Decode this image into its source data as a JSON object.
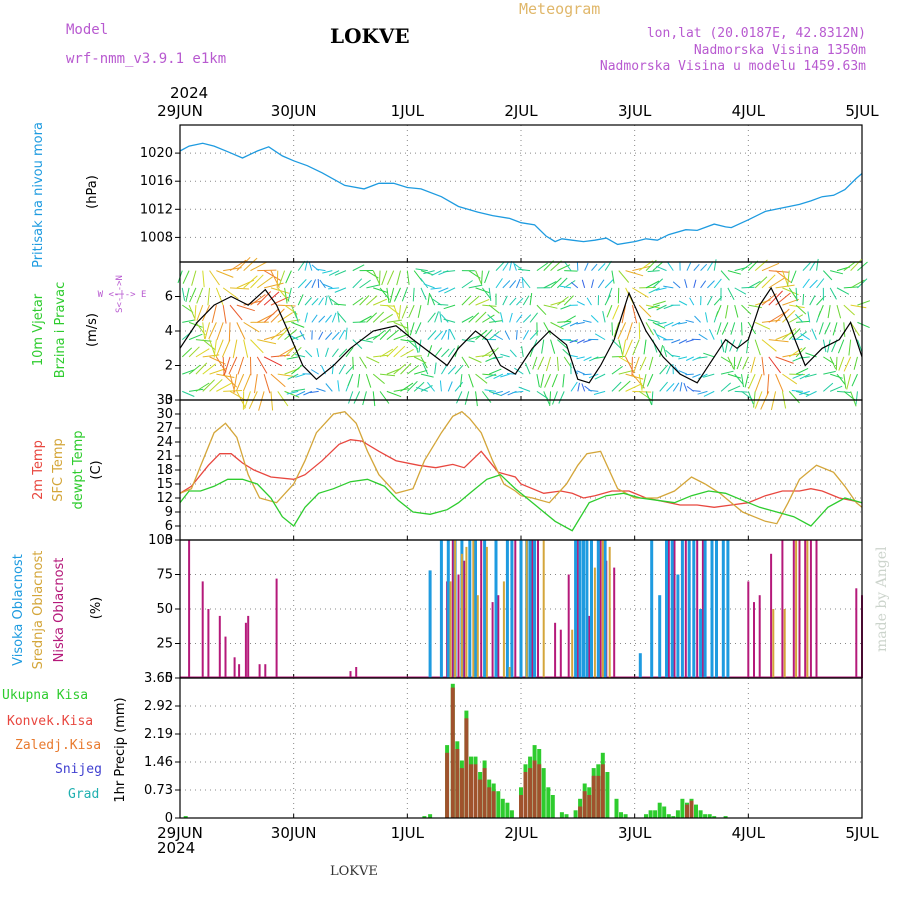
{
  "header": {
    "model_label": "Model",
    "model_name": "wrf-nmm_v3.9.1 e1km",
    "station": "LOKVE",
    "meteogram": "Meteogram",
    "coords": "lon,lat (20.0187E, 42.8312N)",
    "altitude": "Nadmorska Visina 1350m",
    "model_altitude": "Nadmorska Visina u modelu 1459.63m",
    "year": "2024",
    "footer_station": "LOKVE",
    "credit": "made by Angel"
  },
  "colors": {
    "pressure": "#1e9be0",
    "t2m": "#e8473f",
    "sfc": "#d4a63a",
    "dew": "#2ecc2e",
    "high_cloud": "#1e9be0",
    "mid_cloud": "#d4a63a",
    "low_cloud": "#b5197a",
    "total_precip": "#2ecc2e",
    "conv_precip": "#e8473f",
    "frozen_precip": "#e87a2e",
    "snow": "#4040d0",
    "hail": "#20b0b0"
  },
  "x_axis": {
    "tick_labels": [
      "29JUN",
      "30JUN",
      "1JUL",
      "2JUL",
      "3JUL",
      "4JUL",
      "5JUL"
    ]
  },
  "panels": {
    "pressure": {
      "title": "Pritisak na nivou mora",
      "unit": "(hPa)"
    },
    "wind": {
      "title1": "10m Vjetar",
      "title2": "Brzina i Pravac",
      "unit": "(m/s)",
      "compass": "W <-|-> E",
      "compass_ns": "S<-|->N"
    },
    "temp": {
      "label_t2m": "2m Temp",
      "label_sfc": "SFC Temp",
      "label_dew": "dewpt Temp",
      "unit": "(C)"
    },
    "cloud": {
      "label_high": "Visoka Oblacnost",
      "label_mid": "Srednja Oblacnost",
      "label_low": "Niska Oblacnost",
      "unit": "(%)"
    },
    "precip": {
      "label_total": "Ukupna Kisa",
      "label_conv": "Konvek.Kisa",
      "label_frozen": "Zaledj.Kisa",
      "label_snow": "Snijeg",
      "label_hail": "Grad",
      "unit": "1hr Precip (mm)"
    }
  },
  "chart_data": [
    {
      "type": "line",
      "name": "pressure",
      "ylabel": "(hPa)",
      "ylim": [
        1004.5,
        1024
      ],
      "yticks": [
        1008,
        1012,
        1016,
        1020
      ],
      "xlim_days": [
        0,
        6
      ],
      "series": [
        {
          "name": "Pritisak na nivou mora",
          "x": [
            0,
            0.08,
            0.2,
            0.3,
            0.42,
            0.55,
            0.68,
            0.78,
            0.9,
            1.0,
            1.12,
            1.25,
            1.45,
            1.62,
            1.75,
            1.88,
            2.0,
            2.12,
            2.3,
            2.45,
            2.62,
            2.75,
            2.9,
            3.0,
            3.12,
            3.22,
            3.3,
            3.36,
            3.45,
            3.55,
            3.65,
            3.75,
            3.85,
            4.0,
            4.1,
            4.2,
            4.3,
            4.45,
            4.55,
            4.7,
            4.8,
            4.85,
            5.0,
            5.15,
            5.3,
            5.45,
            5.55,
            5.65,
            5.75,
            5.85,
            5.95,
            6.0
          ],
          "values": [
            1020.3,
            1021.0,
            1021.4,
            1021.0,
            1020.2,
            1019.3,
            1020.3,
            1020.9,
            1019.6,
            1018.9,
            1018.2,
            1017.2,
            1015.4,
            1014.9,
            1015.7,
            1015.7,
            1015.1,
            1014.9,
            1013.8,
            1012.4,
            1011.6,
            1011.1,
            1010.7,
            1010.1,
            1009.8,
            1008.2,
            1007.4,
            1007.8,
            1007.6,
            1007.4,
            1007.6,
            1007.9,
            1007.0,
            1007.4,
            1007.8,
            1007.6,
            1008.4,
            1009.1,
            1009.0,
            1009.9,
            1009.5,
            1009.4,
            1010.5,
            1011.7,
            1012.2,
            1012.7,
            1013.2,
            1013.8,
            1014.0,
            1014.8,
            1016.4,
            1017.1
          ]
        }
      ]
    },
    {
      "type": "line",
      "name": "wind",
      "ylabel": "(m/s)",
      "ylim": [
        0,
        8
      ],
      "yticks": [
        0,
        2,
        4,
        6
      ],
      "xlim_days": [
        0,
        6
      ],
      "series": [
        {
          "name": "10m Vjetar Brzina",
          "x": [
            0,
            0.15,
            0.3,
            0.45,
            0.6,
            0.75,
            0.85,
            0.95,
            1.08,
            1.2,
            1.35,
            1.5,
            1.7,
            1.9,
            2.05,
            2.25,
            2.35,
            2.45,
            2.6,
            2.7,
            2.82,
            2.95,
            3.1,
            3.25,
            3.4,
            3.5,
            3.6,
            3.7,
            3.82,
            3.95,
            4.1,
            4.25,
            4.4,
            4.55,
            4.7,
            4.8,
            4.9,
            5.0,
            5.1,
            5.2,
            5.35,
            5.5,
            5.65,
            5.8,
            5.9,
            6.0
          ],
          "values": [
            3.0,
            4.5,
            5.5,
            6.0,
            5.5,
            6.4,
            5.5,
            4.0,
            2.0,
            1.2,
            2.0,
            3.0,
            4.0,
            4.3,
            3.5,
            2.5,
            2.0,
            3.0,
            4.0,
            3.5,
            2.0,
            1.5,
            3.0,
            4.0,
            3.2,
            1.2,
            1.0,
            2.0,
            3.5,
            6.2,
            4.0,
            2.5,
            1.5,
            1.0,
            2.5,
            3.5,
            3.0,
            3.5,
            5.5,
            6.5,
            4.5,
            2.0,
            3.0,
            3.5,
            4.5,
            2.5
          ]
        }
      ]
    },
    {
      "type": "line",
      "name": "temperature",
      "ylabel": "(C)",
      "ylim": [
        3,
        33
      ],
      "yticks": [
        3,
        6,
        9,
        12,
        15,
        18,
        21,
        24,
        27,
        30,
        33
      ],
      "xlim_days": [
        0,
        6
      ],
      "series": [
        {
          "name": "2m Temp",
          "x": [
            0,
            0.1,
            0.25,
            0.35,
            0.45,
            0.55,
            0.65,
            0.8,
            1.0,
            1.1,
            1.25,
            1.4,
            1.5,
            1.6,
            1.75,
            1.9,
            2.1,
            2.25,
            2.4,
            2.5,
            2.65,
            2.8,
            2.95,
            3.0,
            3.1,
            3.2,
            3.35,
            3.45,
            3.55,
            3.65,
            3.8,
            3.95,
            4.1,
            4.2,
            4.4,
            4.55,
            4.7,
            4.85,
            5.0,
            5.15,
            5.3,
            5.45,
            5.55,
            5.65,
            5.8,
            5.9,
            6.0
          ],
          "values": [
            13,
            14.5,
            19,
            21.5,
            21.5,
            19.5,
            18,
            16.5,
            16,
            17,
            20,
            23.5,
            24.5,
            24.2,
            22,
            20,
            19,
            18.5,
            19.2,
            18.5,
            22,
            17.5,
            16.5,
            15,
            14,
            13,
            13.5,
            13,
            12,
            12.5,
            13.5,
            13.5,
            12,
            11.5,
            10.5,
            10.5,
            10,
            10.5,
            11,
            12.5,
            13.5,
            13.5,
            14,
            13.5,
            12,
            11.5,
            11
          ]
        },
        {
          "name": "SFC Temp",
          "x": [
            0,
            0.1,
            0.2,
            0.3,
            0.4,
            0.5,
            0.6,
            0.7,
            0.85,
            1.0,
            1.1,
            1.2,
            1.35,
            1.45,
            1.55,
            1.65,
            1.75,
            1.9,
            2.05,
            2.15,
            2.3,
            2.4,
            2.48,
            2.55,
            2.65,
            2.75,
            2.85,
            2.95,
            3.0,
            3.1,
            3.25,
            3.4,
            3.5,
            3.58,
            3.7,
            3.85,
            4.0,
            4.2,
            4.35,
            4.5,
            4.62,
            4.75,
            4.85,
            4.95,
            5.05,
            5.15,
            5.25,
            5.35,
            5.45,
            5.6,
            5.75,
            5.85,
            5.95,
            6.0
          ],
          "values": [
            13,
            14,
            20,
            26,
            28,
            25,
            17,
            12,
            11,
            15,
            20,
            26,
            30,
            30.5,
            28,
            22,
            17,
            13,
            14,
            20,
            26,
            29.5,
            30.5,
            29,
            26,
            20,
            15,
            13.5,
            12.5,
            12,
            11,
            15,
            19,
            21.5,
            22,
            14,
            12,
            12,
            13.5,
            16.5,
            15,
            13,
            11,
            9,
            8,
            7,
            6.5,
            11,
            16,
            19,
            17.5,
            14.5,
            11,
            10
          ]
        },
        {
          "name": "dewpt Temp",
          "x": [
            0,
            0.08,
            0.18,
            0.3,
            0.42,
            0.55,
            0.68,
            0.8,
            0.9,
            1.0,
            1.1,
            1.22,
            1.35,
            1.5,
            1.65,
            1.8,
            1.92,
            2.05,
            2.2,
            2.35,
            2.45,
            2.55,
            2.7,
            2.82,
            2.95,
            3.05,
            3.15,
            3.3,
            3.45,
            3.6,
            3.75,
            3.9,
            4.05,
            4.2,
            4.35,
            4.5,
            4.65,
            4.8,
            4.95,
            5.1,
            5.25,
            5.4,
            5.55,
            5.7,
            5.85,
            6.0
          ],
          "values": [
            11,
            13.5,
            13.5,
            14.5,
            16,
            16,
            15,
            12,
            8,
            6,
            10,
            13,
            14,
            15.5,
            16,
            14.5,
            11.5,
            9,
            8.5,
            9.5,
            11,
            13,
            16,
            17,
            14,
            12,
            10,
            7,
            5,
            11,
            12.5,
            13,
            12,
            11.5,
            11,
            12.5,
            13.5,
            13,
            11.5,
            10,
            9,
            8,
            6,
            10,
            12,
            11
          ]
        }
      ]
    },
    {
      "type": "bar",
      "name": "cloud",
      "ylabel": "(%)",
      "ylim": [
        0,
        100
      ],
      "yticks": [
        0,
        25,
        50,
        75,
        100
      ],
      "xlim_days": [
        0,
        6
      ],
      "series": [
        {
          "name": "Niska Oblacnost",
          "x": [
            0.08,
            0.2,
            0.25,
            0.35,
            0.4,
            0.48,
            0.52,
            0.58,
            0.6,
            0.7,
            0.75,
            0.85,
            1.5,
            1.55,
            2.35,
            2.4,
            2.45,
            2.5,
            2.55,
            2.6,
            2.65,
            2.75,
            2.8,
            2.95,
            3.1,
            3.15,
            3.3,
            3.35,
            3.42,
            3.5,
            3.55,
            3.6,
            3.7,
            3.75,
            3.82,
            4.3,
            4.35,
            4.45,
            4.55,
            4.6,
            5.0,
            5.05,
            5.1,
            5.2,
            5.3,
            5.4,
            5.45,
            5.5,
            5.55,
            5.6,
            5.95,
            6.0
          ],
          "values": [
            100,
            70,
            50,
            45,
            30,
            15,
            10,
            40,
            45,
            10,
            10,
            72,
            5,
            8,
            70,
            100,
            75,
            85,
            100,
            60,
            100,
            55,
            60,
            100,
            100,
            100,
            40,
            35,
            75,
            100,
            90,
            45,
            100,
            85,
            80,
            100,
            100,
            100,
            100,
            100,
            70,
            55,
            60,
            90,
            100,
            100,
            100,
            100,
            100,
            100,
            65,
            60
          ]
        },
        {
          "name": "Srednja Oblacnost",
          "x": [
            2.38,
            2.42,
            2.48,
            2.52,
            2.58,
            2.62,
            2.7,
            2.85,
            2.9,
            3.05,
            3.2,
            3.45,
            3.65,
            3.72,
            3.78,
            5.22,
            5.32,
            5.42,
            5.52
          ],
          "values": [
            70,
            100,
            90,
            95,
            100,
            60,
            95,
            70,
            8,
            100,
            100,
            35,
            80,
            100,
            95,
            50,
            50,
            100,
            100
          ]
        },
        {
          "name": "Visoka Oblacnost",
          "x": [
            2.2,
            2.3,
            2.36,
            2.42,
            2.48,
            2.55,
            2.6,
            2.68,
            2.78,
            2.88,
            2.92,
            3.0,
            3.05,
            3.08,
            3.12,
            3.48,
            3.52,
            3.55,
            3.58,
            3.62,
            3.68,
            3.74,
            4.05,
            4.15,
            4.22,
            4.28,
            4.33,
            4.38,
            4.42,
            4.48,
            4.52,
            4.58,
            4.62,
            4.68,
            4.72,
            4.78,
            4.82
          ],
          "values": [
            78,
            100,
            100,
            100,
            100,
            100,
            100,
            100,
            100,
            100,
            100,
            100,
            100,
            100,
            100,
            100,
            100,
            100,
            100,
            100,
            100,
            100,
            18,
            100,
            60,
            100,
            100,
            75,
            100,
            100,
            100,
            50,
            100,
            100,
            100,
            100,
            100
          ]
        }
      ]
    },
    {
      "type": "bar",
      "name": "precip",
      "ylabel": "1hr Precip (mm)",
      "ylim": [
        0,
        3.65
      ],
      "yticks": [
        0,
        0.73,
        1.46,
        2.19,
        2.92,
        3.65
      ],
      "xlim_days": [
        0,
        6
      ],
      "series": [
        {
          "name": "Ukupna Kisa",
          "x": [
            0.05,
            2.15,
            2.2,
            2.35,
            2.4,
            2.44,
            2.48,
            2.52,
            2.56,
            2.6,
            2.64,
            2.68,
            2.72,
            2.76,
            2.8,
            2.84,
            2.88,
            2.92,
            3.0,
            3.04,
            3.08,
            3.12,
            3.16,
            3.2,
            3.24,
            3.28,
            3.36,
            3.4,
            3.48,
            3.52,
            3.56,
            3.6,
            3.64,
            3.68,
            3.72,
            3.76,
            3.84,
            3.88,
            3.92,
            4.1,
            4.14,
            4.18,
            4.22,
            4.26,
            4.3,
            4.34,
            4.38,
            4.42,
            4.46,
            4.5,
            4.54,
            4.58,
            4.62,
            4.66,
            4.7,
            4.8
          ],
          "values": [
            0.05,
            0.05,
            0.1,
            1.9,
            3.5,
            2.0,
            1.5,
            2.8,
            1.6,
            1.6,
            1.2,
            1.5,
            1.0,
            0.9,
            0.7,
            0.5,
            0.4,
            0.2,
            0.8,
            1.4,
            1.6,
            1.9,
            1.8,
            1.3,
            0.8,
            0.6,
            0.15,
            0.1,
            0.2,
            0.5,
            0.9,
            0.8,
            1.3,
            1.4,
            1.7,
            1.2,
            0.5,
            0.15,
            0.1,
            0.1,
            0.2,
            0.2,
            0.4,
            0.3,
            0.1,
            0.05,
            0.2,
            0.5,
            0.4,
            0.5,
            0.35,
            0.2,
            0.1,
            0.1,
            0.05,
            0.05
          ]
        },
        {
          "name": "Konvek.Kisa",
          "x": [
            2.35,
            2.4,
            2.44,
            2.48,
            2.52,
            2.56,
            2.6,
            2.64,
            2.68,
            2.72,
            2.76,
            3.0,
            3.04,
            3.08,
            3.12,
            3.16,
            3.52,
            3.56,
            3.6,
            3.64,
            3.68,
            3.72,
            4.46,
            4.5
          ],
          "values": [
            1.7,
            3.4,
            1.8,
            1.3,
            2.6,
            1.4,
            1.4,
            1.0,
            1.3,
            0.8,
            0.7,
            0.6,
            1.2,
            1.3,
            1.5,
            1.4,
            0.3,
            0.7,
            0.6,
            1.1,
            1.1,
            1.4,
            0.35,
            0.45
          ]
        }
      ]
    }
  ]
}
